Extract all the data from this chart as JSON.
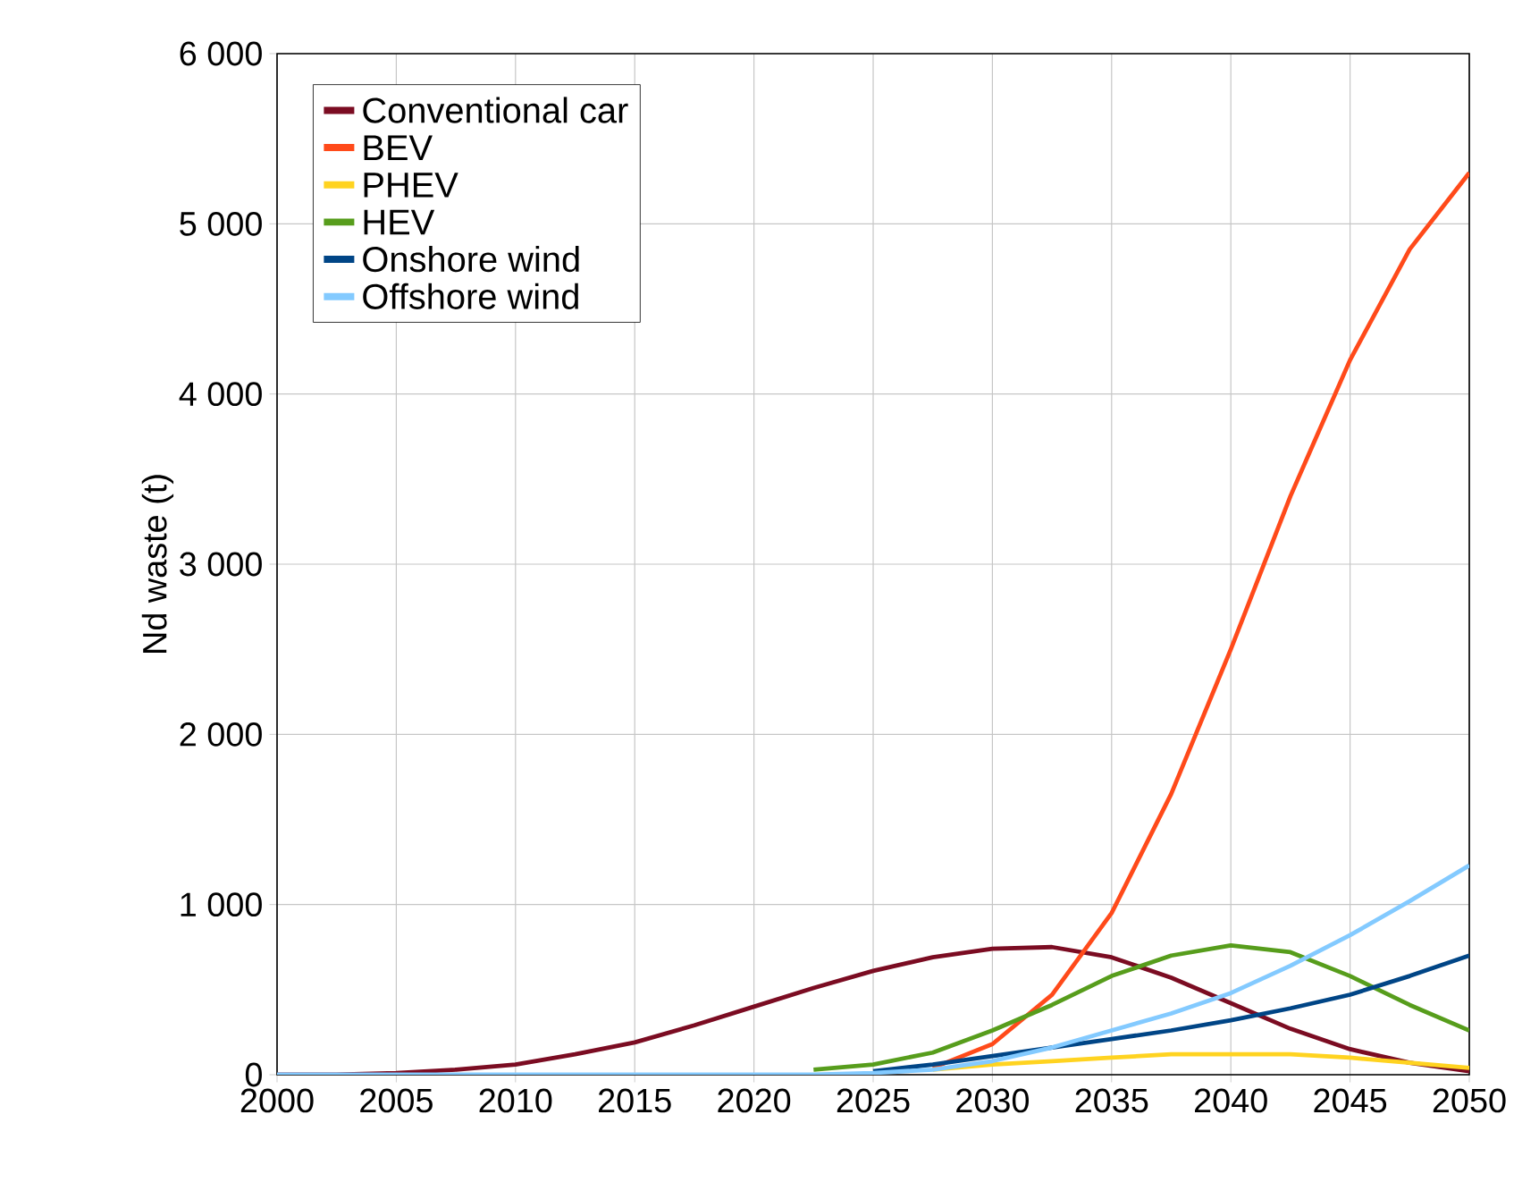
{
  "chart_data": {
    "type": "line",
    "ylabel": "Nd waste (t)",
    "x": [
      2000,
      2002.5,
      2005,
      2007.5,
      2010,
      2012.5,
      2015,
      2017.5,
      2020,
      2022.5,
      2025,
      2027.5,
      2030,
      2032.5,
      2035,
      2037.5,
      2040,
      2042.5,
      2045,
      2047.5,
      2050
    ],
    "series": [
      {
        "name": "Conventional car",
        "color": "#7b0c22",
        "values": [
          0,
          0,
          10,
          30,
          60,
          120,
          190,
          290,
          400,
          510,
          610,
          690,
          740,
          750,
          690,
          570,
          420,
          270,
          150,
          70,
          20
        ]
      },
      {
        "name": "BEV",
        "color": "#ff4a1a",
        "values": [
          null,
          null,
          null,
          null,
          null,
          null,
          null,
          null,
          null,
          null,
          null,
          40,
          180,
          470,
          950,
          1650,
          2500,
          3400,
          4200,
          4850,
          5300
        ]
      },
      {
        "name": "PHEV",
        "color": "#ffd320",
        "values": [
          null,
          null,
          null,
          null,
          null,
          null,
          null,
          null,
          null,
          null,
          null,
          30,
          60,
          80,
          100,
          120,
          120,
          120,
          100,
          70,
          40
        ]
      },
      {
        "name": "HEV",
        "color": "#579d1c",
        "values": [
          null,
          null,
          null,
          null,
          null,
          null,
          null,
          null,
          null,
          30,
          60,
          130,
          260,
          410,
          580,
          700,
          760,
          720,
          580,
          410,
          260
        ]
      },
      {
        "name": "Onshore wind",
        "color": "#004586",
        "values": [
          null,
          null,
          null,
          null,
          null,
          null,
          null,
          null,
          null,
          null,
          20,
          60,
          110,
          160,
          210,
          260,
          320,
          390,
          470,
          580,
          700
        ]
      },
      {
        "name": "Offshore wind",
        "color": "#83caff",
        "values": [
          0,
          0,
          0,
          0,
          0,
          0,
          0,
          0,
          0,
          0,
          10,
          30,
          80,
          160,
          260,
          360,
          480,
          640,
          820,
          1020,
          1230
        ]
      }
    ],
    "xlim": [
      2000,
      2050
    ],
    "xticks": [
      2000,
      2005,
      2010,
      2015,
      2020,
      2025,
      2030,
      2035,
      2040,
      2045,
      2050
    ],
    "ylim": [
      0,
      6000
    ],
    "yticks": [
      0,
      {
        "value": 1000,
        "label": "1 000"
      },
      {
        "value": 2000,
        "label": "2 000"
      },
      {
        "value": 3000,
        "label": "3 000"
      },
      {
        "value": 4000,
        "label": "4 000"
      },
      {
        "value": 5000,
        "label": "5 000"
      },
      {
        "value": 6000,
        "label": "6 000"
      }
    ],
    "grid": true,
    "legend": "top left",
    "marker": "none",
    "line_style": "solid"
  }
}
